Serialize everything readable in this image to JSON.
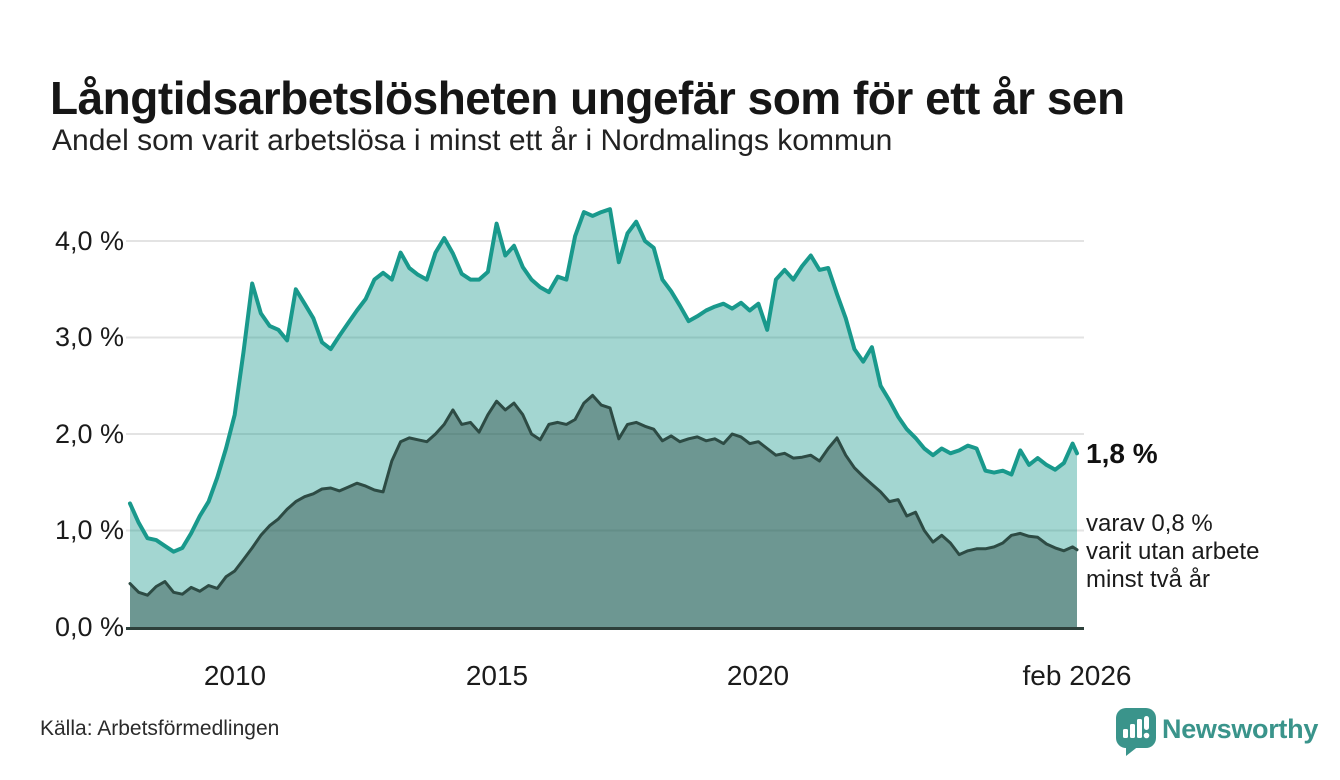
{
  "header": {
    "title": "Långtidsarbetslösheten ungefär som för ett år sen",
    "subtitle": "Andel som varit arbetslösa i minst ett år i Nordmalings kommun"
  },
  "annotation": {
    "end_value": "1,8 %",
    "sub_line_1": "varav 0,8 %",
    "sub_line_2": "varit utan arbete",
    "sub_line_3": "minst två år"
  },
  "footer": {
    "source": "Källa: Arbetsförmedlingen",
    "logo_text": "Newsworthy"
  },
  "colors": {
    "accent_teal": "#19998c",
    "dark_green": "#2d4b44",
    "logo_teal": "#3a948b",
    "grid": "#e3e3e3",
    "axis": "#2e403b"
  },
  "chart_data": {
    "type": "area",
    "title": "Långtidsarbetslösheten ungefär som för ett år sen",
    "subtitle": "Andel som varit arbetslösa i minst ett år i Nordmalings kommun",
    "unit": "%",
    "x_start_year": 2008,
    "x_step_months": 2,
    "x_final_point": "feb 2026",
    "ylim": [
      0,
      4.4
    ],
    "grid": "horizontal",
    "legend": "none",
    "y_ticks": [
      {
        "label": "4,0 %",
        "value": 4.0
      },
      {
        "label": "3,0 %",
        "value": 3.0
      },
      {
        "label": "2,0 %",
        "value": 2.0
      },
      {
        "label": "1,0 %",
        "value": 1.0
      },
      {
        "label": "0,0 %",
        "value": 0.0
      }
    ],
    "x_ticks": [
      {
        "label": "2010",
        "year": 2010
      },
      {
        "label": "2015",
        "year": 2015
      },
      {
        "label": "2020",
        "year": 2020
      },
      {
        "label": "feb 2026",
        "year": 2026.083
      }
    ],
    "series": [
      {
        "name": "Arbetslösa minst ett år",
        "color": "#19998c",
        "fill": "rgba(25,153,140,0.40)",
        "end_label": "1,8 %",
        "values": [
          1.28,
          1.08,
          0.92,
          0.9,
          0.84,
          0.78,
          0.82,
          0.97,
          1.15,
          1.3,
          1.55,
          1.85,
          2.2,
          2.85,
          3.56,
          3.25,
          3.12,
          3.08,
          2.97,
          3.5,
          3.35,
          3.2,
          2.95,
          2.88,
          3.02,
          3.15,
          3.28,
          3.4,
          3.6,
          3.67,
          3.6,
          3.88,
          3.72,
          3.65,
          3.6,
          3.88,
          4.03,
          3.87,
          3.66,
          3.6,
          3.6,
          3.68,
          4.18,
          3.85,
          3.95,
          3.73,
          3.6,
          3.52,
          3.47,
          3.63,
          3.6,
          4.05,
          4.3,
          4.26,
          4.3,
          4.33,
          3.78,
          4.08,
          4.2,
          4.0,
          3.93,
          3.6,
          3.48,
          3.33,
          3.17,
          3.22,
          3.28,
          3.32,
          3.35,
          3.3,
          3.36,
          3.28,
          3.35,
          3.08,
          3.6,
          3.7,
          3.6,
          3.74,
          3.85,
          3.7,
          3.72,
          3.45,
          3.2,
          2.88,
          2.75,
          2.9,
          2.5,
          2.35,
          2.18,
          2.05,
          1.96,
          1.85,
          1.78,
          1.85,
          1.8,
          1.83,
          1.88,
          1.85,
          1.62,
          1.6,
          1.62,
          1.58,
          1.83,
          1.68,
          1.75,
          1.68,
          1.63,
          1.7,
          1.9,
          1.8
        ]
      },
      {
        "name": "Utan arbete minst två år",
        "color": "#2d4b44",
        "fill": "rgba(45,75,68,0.45)",
        "end_label": "varav 0,8 % varit utan arbete minst två år",
        "values": [
          0.45,
          0.36,
          0.33,
          0.42,
          0.47,
          0.36,
          0.34,
          0.41,
          0.37,
          0.43,
          0.4,
          0.52,
          0.58,
          0.7,
          0.82,
          0.95,
          1.05,
          1.12,
          1.22,
          1.3,
          1.35,
          1.38,
          1.43,
          1.44,
          1.41,
          1.45,
          1.49,
          1.46,
          1.42,
          1.4,
          1.72,
          1.92,
          1.96,
          1.94,
          1.92,
          2.0,
          2.1,
          2.25,
          2.1,
          2.12,
          2.02,
          2.2,
          2.34,
          2.25,
          2.32,
          2.2,
          2.0,
          1.94,
          2.1,
          2.12,
          2.1,
          2.15,
          2.32,
          2.4,
          2.3,
          2.27,
          1.95,
          2.1,
          2.12,
          2.08,
          2.05,
          1.93,
          1.98,
          1.92,
          1.95,
          1.97,
          1.93,
          1.95,
          1.9,
          2.0,
          1.97,
          1.9,
          1.92,
          1.85,
          1.78,
          1.8,
          1.75,
          1.76,
          1.78,
          1.72,
          1.85,
          1.96,
          1.78,
          1.65,
          1.56,
          1.48,
          1.4,
          1.3,
          1.32,
          1.15,
          1.19,
          1.0,
          0.88,
          0.95,
          0.87,
          0.75,
          0.79,
          0.81,
          0.81,
          0.83,
          0.87,
          0.95,
          0.97,
          0.94,
          0.93,
          0.86,
          0.82,
          0.79,
          0.83,
          0.8
        ]
      }
    ]
  }
}
